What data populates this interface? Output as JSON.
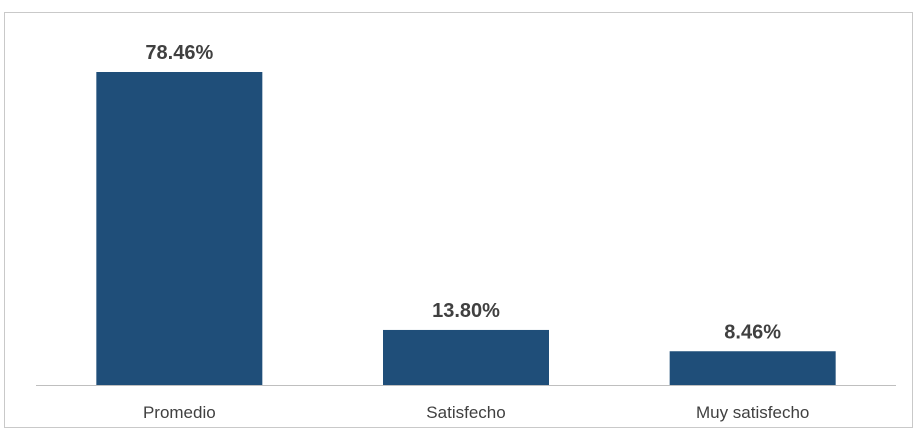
{
  "chart_data": {
    "type": "bar",
    "categories": [
      "Promedio",
      "Satisfecho",
      "Muy satisfecho"
    ],
    "values": [
      78.46,
      13.8,
      8.46
    ],
    "value_labels": [
      "78.46%",
      "13.80%",
      "8.46%"
    ],
    "title": "",
    "xlabel": "",
    "ylabel": "",
    "ylim": [
      0,
      80
    ],
    "grid": false,
    "legend": "none",
    "colors": {
      "bar": "#1f4e79",
      "axis": "#bfbfbf",
      "text": "#404040"
    }
  }
}
